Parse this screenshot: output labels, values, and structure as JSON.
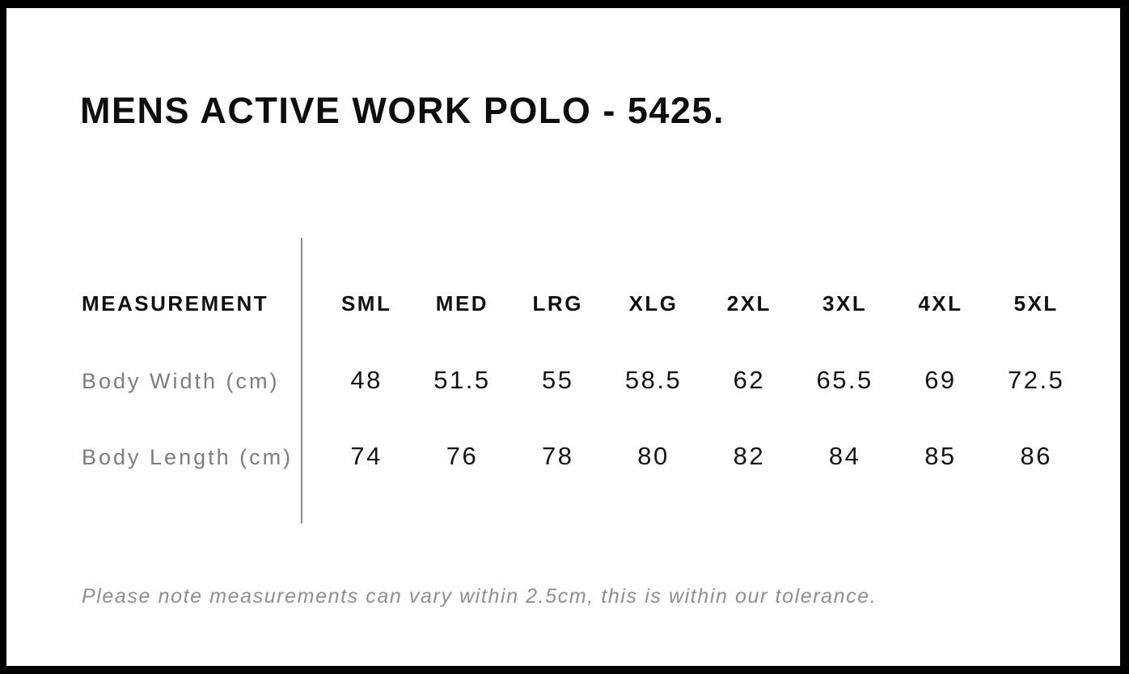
{
  "page_title": "MENS ACTIVE WORK POLO - 5425.",
  "table": {
    "measurement_header": "MEASUREMENT",
    "columns": [
      "SML",
      "MED",
      "LRG",
      "XLG",
      "2XL",
      "3XL",
      "4XL",
      "5XL"
    ],
    "rows": [
      {
        "label": "Body Width (cm)",
        "values": [
          "48",
          "51.5",
          "55",
          "58.5",
          "62",
          "65.5",
          "69",
          "72.5"
        ]
      },
      {
        "label": "Body Length (cm)",
        "values": [
          "74",
          "76",
          "78",
          "80",
          "82",
          "84",
          "85",
          "86"
        ]
      }
    ]
  },
  "note": "Please note measurements can vary within 2.5cm, this is within our tolerance.",
  "chart_data": {
    "type": "table",
    "title": "MENS ACTIVE WORK POLO - 5425.",
    "columns": [
      "MEASUREMENT",
      "SML",
      "MED",
      "LRG",
      "XLG",
      "2XL",
      "3XL",
      "4XL",
      "5XL"
    ],
    "rows": [
      [
        "Body Width (cm)",
        48,
        51.5,
        55,
        58.5,
        62,
        65.5,
        69,
        72.5
      ],
      [
        "Body Length (cm)",
        74,
        76,
        78,
        80,
        82,
        84,
        85,
        86
      ]
    ],
    "footnote": "Please note measurements can vary within 2.5cm, this is within our tolerance."
  },
  "colors": {
    "background": "#ffffff",
    "frame": "#000000",
    "text_primary": "#111111",
    "row_label": "#7d7d7d",
    "note_text": "#8f8f8f",
    "divider": "#8f8f8f"
  }
}
